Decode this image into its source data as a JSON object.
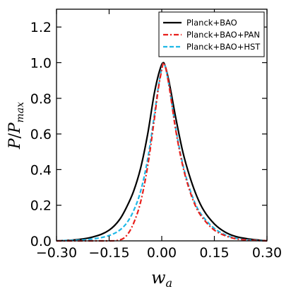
{
  "chart_data": {
    "type": "line",
    "title": "",
    "xlabel": "w_a",
    "ylabel": "P/P_max",
    "xlim": [
      -0.3,
      0.3
    ],
    "ylim": [
      0.0,
      1.3
    ],
    "x_ticks": [
      -0.3,
      -0.15,
      0.0,
      0.15,
      0.3
    ],
    "x_tick_labels": [
      "−0.30",
      "−0.15",
      "0.00",
      "0.15",
      "0.30"
    ],
    "y_ticks": [
      0.0,
      0.2,
      0.4,
      0.6,
      0.8,
      1.0,
      1.2
    ],
    "y_tick_labels": [
      "0.0",
      "0.2",
      "0.4",
      "0.6",
      "0.8",
      "1.0",
      "1.2"
    ],
    "grid": false,
    "legend_position": "top-right",
    "series": [
      {
        "name": "Planck+BAO",
        "color": "#000000",
        "style": "solid",
        "x": [
          -0.3,
          -0.25,
          -0.2,
          -0.15,
          -0.12,
          -0.1,
          -0.08,
          -0.06,
          -0.04,
          -0.02,
          0.0,
          0.005,
          0.01,
          0.02,
          0.04,
          0.06,
          0.08,
          0.1,
          0.12,
          0.15,
          0.18,
          0.21,
          0.25,
          0.3
        ],
        "y": [
          0.0,
          0.005,
          0.02,
          0.06,
          0.12,
          0.19,
          0.28,
          0.41,
          0.6,
          0.84,
          0.99,
          1.0,
          0.98,
          0.9,
          0.69,
          0.5,
          0.36,
          0.25,
          0.17,
          0.095,
          0.05,
          0.025,
          0.01,
          0.0
        ]
      },
      {
        "name": "Planck+BAO+PAN",
        "color": "#e8201c",
        "style": "dashdot",
        "x": [
          -0.3,
          -0.15,
          -0.12,
          -0.1,
          -0.08,
          -0.06,
          -0.04,
          -0.02,
          -0.01,
          0.0,
          0.005,
          0.01,
          0.02,
          0.04,
          0.06,
          0.08,
          0.1,
          0.12,
          0.15,
          0.18,
          0.21,
          0.25,
          0.3
        ],
        "y": [
          0.0,
          0.0,
          0.005,
          0.03,
          0.1,
          0.22,
          0.42,
          0.7,
          0.85,
          0.96,
          1.0,
          0.98,
          0.88,
          0.62,
          0.42,
          0.28,
          0.18,
          0.12,
          0.06,
          0.03,
          0.012,
          0.004,
          0.0
        ]
      },
      {
        "name": "Planck+BAO+HST",
        "color": "#1fb8e6",
        "style": "dashed",
        "x": [
          -0.3,
          -0.2,
          -0.15,
          -0.12,
          -0.1,
          -0.08,
          -0.06,
          -0.04,
          -0.02,
          -0.01,
          0.0,
          0.005,
          0.01,
          0.02,
          0.04,
          0.06,
          0.08,
          0.1,
          0.12,
          0.15,
          0.18,
          0.21,
          0.25,
          0.3
        ],
        "y": [
          0.0,
          0.01,
          0.03,
          0.06,
          0.1,
          0.17,
          0.28,
          0.46,
          0.72,
          0.86,
          0.97,
          1.0,
          0.98,
          0.88,
          0.63,
          0.43,
          0.29,
          0.19,
          0.13,
          0.07,
          0.035,
          0.015,
          0.005,
          0.0
        ]
      }
    ]
  }
}
